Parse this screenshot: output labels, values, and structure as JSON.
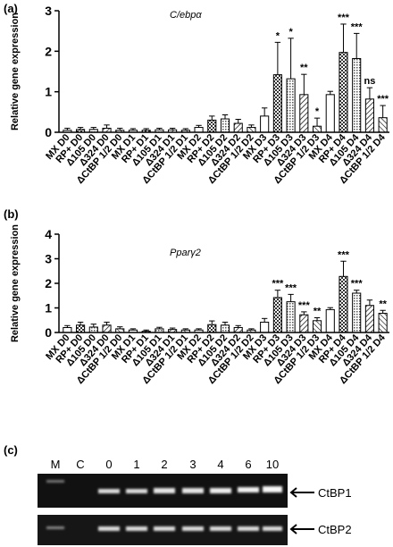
{
  "chart_data": [
    {
      "type": "bar",
      "panel": "(a)",
      "title": "C/ebpα",
      "ylabel": "Relative gene expression",
      "categories": [
        "MX D0",
        "RP+ D0",
        "Δ105 D0",
        "Δ324 D0",
        "ΔCtBP 1/2 D0",
        "MX D1",
        "RP+ D1",
        "Δ105 D1",
        "Δ324 D1",
        "ΔCtBP 1/2 D1",
        "MX D2",
        "RP+ D2",
        "Δ105 D2",
        "Δ324 D2",
        "ΔCtBP 1/2 D2",
        "MX D3",
        "RP+ D3",
        "Δ105 D3",
        "Δ324 D3",
        "ΔCtBP 1/2 D3",
        "MX D4",
        "RP+ D4",
        "Δ105 D4",
        "Δ324 D4",
        "ΔCtBP 1/2 D4"
      ],
      "values": [
        0.05,
        0.07,
        0.07,
        0.1,
        0.05,
        0.05,
        0.05,
        0.06,
        0.06,
        0.05,
        0.12,
        0.3,
        0.33,
        0.22,
        0.12,
        0.4,
        1.42,
        1.32,
        0.93,
        0.15,
        0.93,
        1.97,
        1.82,
        0.82,
        0.36
      ],
      "errors": [
        0.05,
        0.05,
        0.05,
        0.08,
        0.05,
        0.04,
        0.04,
        0.04,
        0.04,
        0.04,
        0.05,
        0.1,
        0.1,
        0.1,
        0.06,
        0.2,
        0.8,
        1.0,
        0.5,
        0.2,
        0.08,
        0.7,
        0.62,
        0.28,
        0.3
      ],
      "annotations": [
        null,
        null,
        null,
        null,
        null,
        null,
        null,
        null,
        null,
        null,
        null,
        null,
        null,
        null,
        null,
        null,
        "*",
        "*",
        "**",
        "*",
        null,
        "***",
        "***",
        "ns",
        "***"
      ],
      "fills": [
        "open",
        "checker",
        "dots",
        "hatch",
        "backhatch",
        "open",
        "checker",
        "dots",
        "hatch",
        "backhatch",
        "open",
        "checker",
        "dots",
        "hatch",
        "backhatch",
        "open",
        "checker",
        "dots",
        "hatch",
        "backhatch",
        "open",
        "checker",
        "dots",
        "hatch",
        "backhatch"
      ],
      "ylim": [
        0,
        3
      ],
      "yticks": [
        0,
        1,
        2,
        3
      ]
    },
    {
      "type": "bar",
      "panel": "(b)",
      "title": "Pparγ2",
      "ylabel": "Relative gene expression",
      "categories": [
        "MX D0",
        "RP+ D0",
        "Δ105 D0",
        "Δ324 D0",
        "ΔCtBP 1/2 D0",
        "MX D1",
        "RP+ D1",
        "Δ105 D1",
        "Δ324 D1",
        "ΔCtBP 1/2 D1",
        "MX D2",
        "RP+ D2",
        "Δ105 D2",
        "Δ324 D2",
        "ΔCtBP 1/2 D2",
        "MX D3",
        "RP+ D3",
        "Δ105 D3",
        "Δ324 D3",
        "ΔCtBP 1/2 D3",
        "MX D4",
        "RP+ D4",
        "Δ105 D4",
        "Δ324 D4",
        "ΔCtBP 1/2 D4"
      ],
      "values": [
        0.2,
        0.3,
        0.22,
        0.3,
        0.15,
        0.1,
        0.05,
        0.15,
        0.12,
        0.1,
        0.1,
        0.32,
        0.3,
        0.2,
        0.1,
        0.42,
        1.42,
        1.25,
        0.72,
        0.48,
        0.93,
        2.28,
        1.6,
        1.1,
        0.78
      ],
      "errors": [
        0.08,
        0.12,
        0.12,
        0.12,
        0.08,
        0.05,
        0.05,
        0.06,
        0.06,
        0.05,
        0.05,
        0.15,
        0.12,
        0.08,
        0.05,
        0.15,
        0.3,
        0.3,
        0.12,
        0.12,
        0.08,
        0.62,
        0.12,
        0.22,
        0.12
      ],
      "annotations": [
        null,
        null,
        null,
        null,
        null,
        null,
        null,
        null,
        null,
        null,
        null,
        null,
        null,
        null,
        null,
        null,
        "***",
        "***",
        "***",
        "**",
        null,
        "***",
        "***",
        null,
        "**"
      ],
      "fills": [
        "open",
        "checker",
        "dots",
        "hatch",
        "backhatch",
        "open",
        "checker",
        "dots",
        "hatch",
        "backhatch",
        "open",
        "checker",
        "dots",
        "hatch",
        "backhatch",
        "open",
        "checker",
        "dots",
        "hatch",
        "backhatch",
        "open",
        "checker",
        "dots",
        "hatch",
        "backhatch"
      ],
      "ylim": [
        0,
        4
      ],
      "yticks": [
        0,
        1,
        2,
        3,
        4
      ]
    }
  ],
  "gel": {
    "panel": "(c)",
    "lanes": [
      "M",
      "C",
      "0",
      "1",
      "2",
      "3",
      "4",
      "6",
      "10"
    ],
    "bands": [
      "CtBP1",
      "CtBP2"
    ]
  }
}
